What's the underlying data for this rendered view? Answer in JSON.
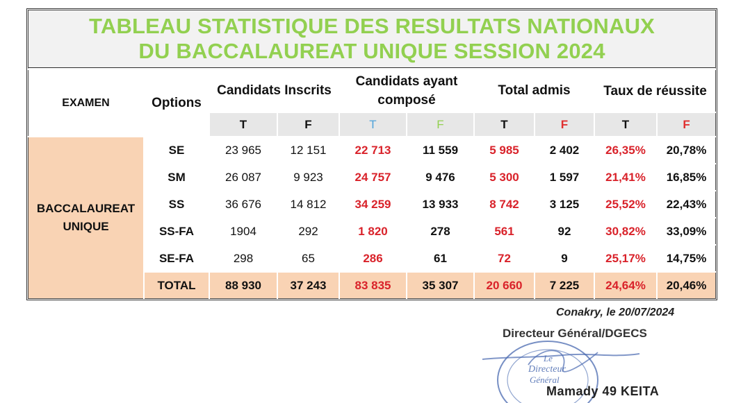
{
  "title": {
    "line1": "TABLEAU STATISTIQUE DES RESULTATS NATIONAUX",
    "line2": "DU BACCALAUREAT UNIQUE SESSION 2024"
  },
  "headers": {
    "examen": "EXAMEN",
    "options": "Options",
    "inscrits": "Candidats Inscrits",
    "composes": "Candidats ayant composé",
    "admis": "Total admis",
    "taux": "Taux de réussite",
    "t": "T",
    "f": "F"
  },
  "exam_name": "BACCALAUREAT UNIQUE",
  "rows": [
    {
      "option": "SE",
      "insc_t": "23 965",
      "insc_f": "12 151",
      "comp_t": "22 713",
      "comp_f": "11 559",
      "adm_t": "5 985",
      "adm_f": "2 402",
      "taux_t": "26,35%",
      "taux_f": "20,78%"
    },
    {
      "option": "SM",
      "insc_t": "26 087",
      "insc_f": "9 923",
      "comp_t": "24 757",
      "comp_f": "9 476",
      "adm_t": "5 300",
      "adm_f": "1 597",
      "taux_t": "21,41%",
      "taux_f": "16,85%"
    },
    {
      "option": "SS",
      "insc_t": "36 676",
      "insc_f": "14 812",
      "comp_t": "34 259",
      "comp_f": "13 933",
      "adm_t": "8 742",
      "adm_f": "3 125",
      "taux_t": "25,52%",
      "taux_f": "22,43%"
    },
    {
      "option": "SS-FA",
      "insc_t": "1904",
      "insc_f": "292",
      "comp_t": "1 820",
      "comp_f": "278",
      "adm_t": "561",
      "adm_f": "92",
      "taux_t": "30,82%",
      "taux_f": "33,09%"
    },
    {
      "option": "SE-FA",
      "insc_t": "298",
      "insc_f": "65",
      "comp_t": "286",
      "comp_f": "61",
      "adm_t": "72",
      "adm_f": "9",
      "taux_t": "25,17%",
      "taux_f": "14,75%"
    }
  ],
  "total": {
    "option": "TOTAL",
    "insc_t": "88 930",
    "insc_f": "37 243",
    "comp_t": "83 835",
    "comp_f": "35 307",
    "adm_t": "20 660",
    "adm_f": "7 225",
    "taux_t": "24,64%",
    "taux_f": "20,46%"
  },
  "signature": {
    "place_date": "Conakry, le 20/07/2024",
    "title": "Directeur Général/DGECS",
    "stamp_line1": "Le",
    "stamp_line2": "Directeur",
    "stamp_line3": "Général",
    "name": "Mamady 49 KEITA"
  },
  "colors": {
    "title_green": "#92d050",
    "highlight_red": "#d9222a",
    "peach_fill": "#f9d3b4",
    "stamp_blue": "#4a6ab0"
  }
}
